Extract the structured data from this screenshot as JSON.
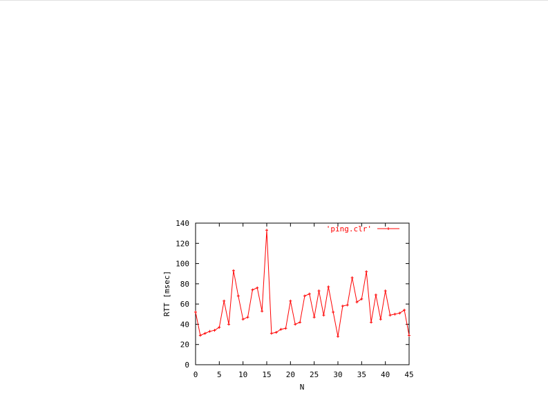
{
  "chart_data": {
    "type": "line",
    "title": "",
    "xlabel": "N",
    "ylabel": "RTT [msec]",
    "xlim": [
      0,
      45
    ],
    "ylim": [
      0,
      140
    ],
    "x_ticks": [
      "0",
      "5",
      "10",
      "15",
      "20",
      "25",
      "30",
      "35",
      "40",
      "45"
    ],
    "y_ticks": [
      "0",
      "20",
      "40",
      "60",
      "80",
      "100",
      "120",
      "140"
    ],
    "grid": false,
    "legend_position": "top-right",
    "series": [
      {
        "name": "'ping.clr'",
        "color": "#ff0000",
        "marker": "plus",
        "x": [
          0,
          1,
          2,
          3,
          4,
          5,
          6,
          7,
          8,
          9,
          10,
          11,
          12,
          13,
          14,
          15,
          16,
          17,
          18,
          19,
          20,
          21,
          22,
          23,
          24,
          25,
          26,
          27,
          28,
          29,
          30,
          31,
          32,
          33,
          34,
          35,
          36,
          37,
          38,
          39,
          40,
          41,
          42,
          43,
          44,
          45
        ],
        "y": [
          52,
          29,
          31,
          33,
          34,
          37,
          63,
          40,
          93,
          68,
          45,
          47,
          74,
          76,
          53,
          133,
          31,
          32,
          35,
          36,
          63,
          40,
          42,
          68,
          70,
          47,
          73,
          49,
          77,
          52,
          28,
          58,
          59,
          86,
          62,
          65,
          92,
          42,
          69,
          45,
          73,
          49,
          50,
          51,
          54,
          29
        ]
      }
    ]
  }
}
